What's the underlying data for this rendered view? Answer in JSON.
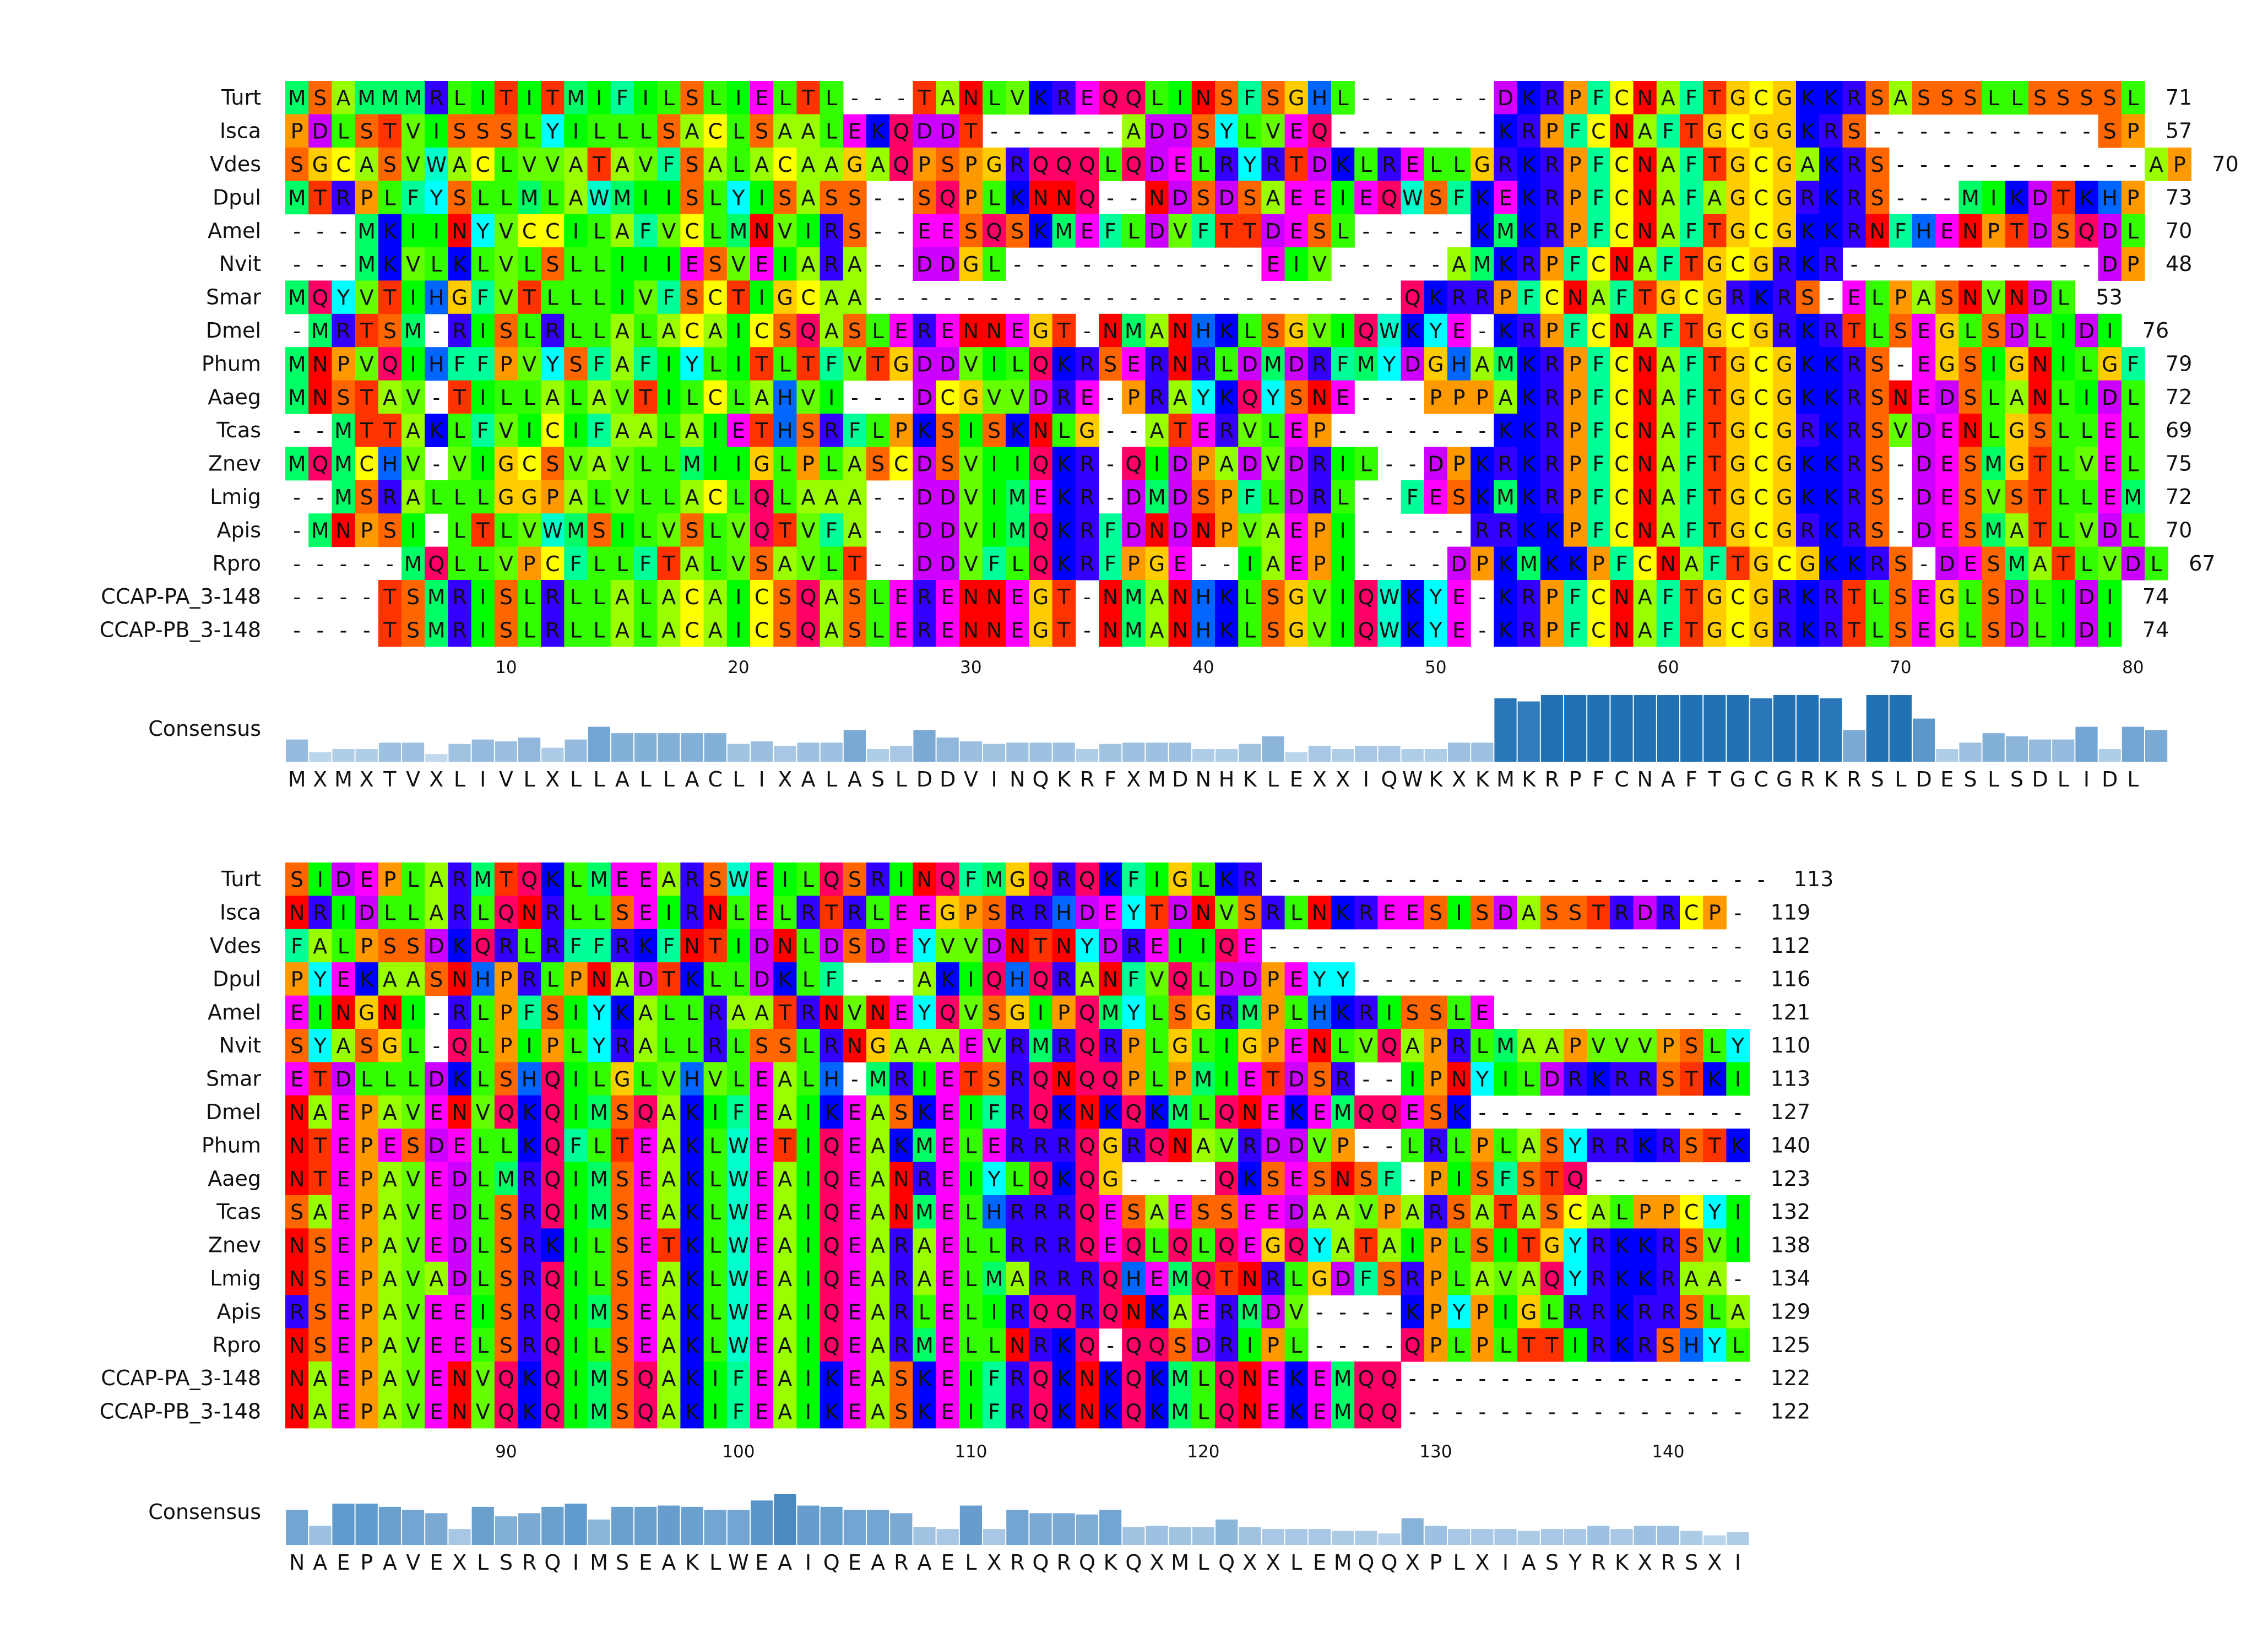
{
  "alignment": {
    "names": [
      "Turt",
      "Isca",
      "Vdes",
      "Dpul",
      "Amel",
      "Nvit",
      "Smar",
      "Dmel",
      "Phum",
      "Aaeg",
      "Tcas",
      "Znev",
      "Lmig",
      "Apis",
      "Rpro",
      "CCAP-PA_3-148",
      "CCAP-PB_3-148"
    ],
    "blocks": [
      {
        "sequences": [
          "MSAMMMRLITITMIFILSLIELTL---TANLVKREQQLINSFSGHL------DKRPFCNAFTGCGKKRSASSSLLSSSSL",
          "PDLSTVISSSLYILLLSACLSAALEKQDDT------ADDSYLVEQ-------KRPFCNAFTGCGGKRS----------SP",
          "SGCASVWACLVVATAVFSALACAAGAQPSPGRQQQLQDELRYRTDKLRELLGRKRPFCNAFTGCGAKRS-----------AP",
          "MTRPLFYSLLMLAWMIISLYISASS--SQPLKNNQ--NDSDSAEEIEQWSFKEKRPFCNAFAGCGRKRS---MIKDTKHP",
          "---MKIINYVCCILAFVCLMNVIRS--EESQSKMEFLDVFTTDESL-----KMKRPFCNAFTGCGKKRNFHENPTDSQDL",
          "---MKVLKLVLSLLIIIESVEIARA--DDGL-----------EIV-----AMKRPFCNAFTGCGRKR-----------DP",
          "MQYVTIHGFVTLLLIVFSCTIGCAA-----------------------QKRRPFCNAFTGCGRKRS-ELPASNVNDL",
          "-MRTSM-RISLRLLALACAICSQASLERENNEGT-NMANHKLSGVIQWKYE-KRPFCNAFTGCGRKRTLSEGLSDLIDI",
          "MNPVQIHFFPVYSFAFIYLITLTFVTGDDVILQKRSERNRLDMDRFMYDGHAMKRPFCNAFTGCGKKRS-EGSIGNILGF",
          "MNSTAV-TILLALAVTILCLAHVI---DCGVVDRE-PRAYKQYSNE---PPPAKRPFCNAFTGCGKKRSNEDSLANLIDL",
          "--MTTAKLFVICIFAALAIETHSRFLPKSISKNLG--ATERVLEP-------KKRPFCNAFTGCGRKRSVDENLGSLLEL",
          "MQMCHV-VIGCSVAVLLMIIGLPLASCDSVIIQKR-QIDPADVDRIL--DPKRKRPFCNAFTGCGKKRS-DESMGTLVEL",
          "--MSRALLLGGPALVLLACLQLAAA--DDVIMEKR-DMDSPFLDRL--FESKMKRPFCNAFTGCGKKRS-DESVSTLLEM",
          "-MNPSI-LTLVWMSILVSLVQTVFA--DDVIMQKRFDNDNPVAEPI-----RRKKPFCNAFTGCGRKRS-DESMATLVDL",
          "-----MQLLVPCFLLFTALVSAVLT--DDVFLQKRFPGE--IAEPI----DPKMKKPFCNAFTGCGKKRS-DESMATLVDL",
          "----TSMRISLRLLALACAICSQASLERENNEGT-NMANHKLSGVIQWKYE-KRPFCNAFTGCGRKRTLSEGLSDLIDI",
          "----TSMRISLRLLALACAICSQASLERENNEGT-NMANHKLSGVIQWKYE-KRPFCNAFTGCGRKRTLSEGLSDLIDI"
        ],
        "end_numbers": [
          "71",
          "57",
          "70",
          "73",
          "70",
          "48",
          "53",
          "76",
          "79",
          "72",
          "69",
          "75",
          "72",
          "70",
          "67",
          "74",
          "74"
        ],
        "ticks": [
          "10",
          "20",
          "30",
          "40",
          "50",
          "60",
          "70",
          "80"
        ],
        "consensus_label": "Consensus",
        "consensus": "MXMXTVXLIVLXLLALLACLIXALASLDDVINQKRFXMDNHKLEXXIQWKXKMKRPFCNAFTGCGRKRSLDESLSDLIDL",
        "conservation": [
          0.35,
          0.15,
          0.2,
          0.2,
          0.3,
          0.3,
          0.12,
          0.28,
          0.35,
          0.32,
          0.38,
          0.22,
          0.35,
          0.55,
          0.45,
          0.45,
          0.45,
          0.45,
          0.45,
          0.28,
          0.32,
          0.25,
          0.3,
          0.3,
          0.5,
          0.2,
          0.25,
          0.5,
          0.38,
          0.32,
          0.28,
          0.3,
          0.3,
          0.3,
          0.2,
          0.28,
          0.3,
          0.3,
          0.3,
          0.2,
          0.2,
          0.28,
          0.4,
          0.15,
          0.25,
          0.2,
          0.25,
          0.25,
          0.2,
          0.2,
          0.3,
          0.3,
          1.0,
          0.95,
          1.05,
          1.05,
          1.05,
          1.05,
          1.05,
          1.05,
          1.05,
          1.05,
          1.05,
          1.0,
          1.05,
          1.05,
          1.0,
          0.5,
          1.05,
          1.05,
          0.68,
          0.2,
          0.3,
          0.45,
          0.4,
          0.35,
          0.35,
          0.55,
          0.2,
          0.55,
          0.5
        ]
      },
      {
        "sequences": [
          "SIDEPLARMTQKLMEEARSWEILQSRINQFMGQRQKFIGLKR----------------------",
          "NRIDLLARLQNRLLSEIRNLELRTRLEEGPSRRHDEYTDNVSRLNKREESISDASSTRDRCP-",
          "FALPSSDKQRLRFFRKFNTIDNLDSDEYVVDNTNYDREIIQE---------------------",
          "PYEKAASNHPRLPNADTKLLDKLF---AKIQHQRANFVQLDDPEYY-----------------",
          "EINGNI-RLPFSIYKALLRAATRNVNEYQVSGIPQMYLSGRMPLHKRISSLE-----------",
          "SYASGL-QLPIPLYRALLRLSSLRNGAAAEVRMRQRPLGLIGPENLVQAPRLMAAPVVVPSLY",
          "ETDLLLDKLSHQILGLVHVLEALH-MRIETSRQNQQPLPMIETDSR--IPNYILDRKRRSTKI",
          "NAEPAVENVQKQIMSQAKIFEAIKEASKEIFRQKNKQKMLQNEKEMQQESK------------",
          "NTEPESDELLKQFLTEAKLWETIQEAKMELERRRQGRQNAVRDDVP--LRLPLASYRRKRSTK",
          "NTEPAVEDLMRQIMSEAKLWEAIQEANREIYLQKQG----QKSESNSF-PISFSTQ-------",
          "SAEPAVEDLSRQIMSEAKLWEAIQEANMELHRRRQESAESSEEDAAVPARSATASCALPPCYI",
          "NSEPAVEDLSRKILSETKLWEAIQEARAELLRRRQEQLQLQEGQYATAIPLSITGYRKKRSVI",
          "NSEPAVADLSRQILSEAKLWEAIQEARAELMARRRQHEMQTNRLGDFSRPLAVAQYRKKRAA-",
          "RSEPAVEEISRQIMSEAKLWEAIQEARLELIRQQRQNKAERMDV----KPYPIGLRRKRRSLA",
          "NSEPAVEELSRQILSEAKLWEAIQEARMELLNRKQ-QQSDRIPL----QPLPLTTIRKRSHYL",
          "NAEPAVENVQKQIMSQAKIFEAIKEASKEIFRQKNKQKMLQNEKEMQQ---------------",
          "NAEPAVENVQKQIMSQAKIFEAIKEASKEIFRQKNKQKMLQNEKEMQQ---------------"
        ],
        "end_numbers": [
          "113",
          "119",
          "112",
          "116",
          "121",
          "110",
          "113",
          "127",
          "140",
          "123",
          "132",
          "138",
          "134",
          "129",
          "125",
          "122",
          "122"
        ],
        "ticks": [
          "90",
          "100",
          "110",
          "120",
          "130",
          "140"
        ],
        "consensus_label": "Consensus",
        "consensus": "NAEPAVEXLSRQIMSEAKLWEAIQEARAELXRQRQKQXMLQXXLEMQQXPLXIASYRKXRSXI",
        "conservation": [
          0.55,
          0.3,
          0.65,
          0.65,
          0.6,
          0.55,
          0.5,
          0.25,
          0.6,
          0.45,
          0.5,
          0.6,
          0.65,
          0.4,
          0.6,
          0.6,
          0.62,
          0.6,
          0.55,
          0.55,
          0.7,
          0.8,
          0.62,
          0.6,
          0.55,
          0.55,
          0.5,
          0.28,
          0.25,
          0.62,
          0.25,
          0.55,
          0.5,
          0.5,
          0.48,
          0.55,
          0.28,
          0.3,
          0.28,
          0.28,
          0.4,
          0.28,
          0.25,
          0.25,
          0.25,
          0.22,
          0.22,
          0.18,
          0.42,
          0.3,
          0.25,
          0.25,
          0.25,
          0.22,
          0.25,
          0.25,
          0.3,
          0.25,
          0.3,
          0.3,
          0.22,
          0.15,
          0.2
        ]
      }
    ]
  },
  "colors": {
    "A": "#99ff00",
    "V": "#66ff00",
    "L": "#33ff00",
    "I": "#00ff00",
    "M": "#00ff66",
    "F": "#00ff99",
    "W": "#00ffcc",
    "Y": "#00ffff",
    "C": "#ffff00",
    "G": "#ffcc00",
    "P": "#ff9900",
    "S": "#ff6600",
    "T": "#ff3300",
    "N": "#ff0000",
    "Q": "#ff0066",
    "D": "#cc00ff",
    "E": "#ff00ff",
    "K": "#0000ff",
    "R": "#3300ff",
    "H": "#0066ff",
    "consensus_bar_low": "#c6dbef",
    "consensus_bar_high": "#2171b5"
  }
}
